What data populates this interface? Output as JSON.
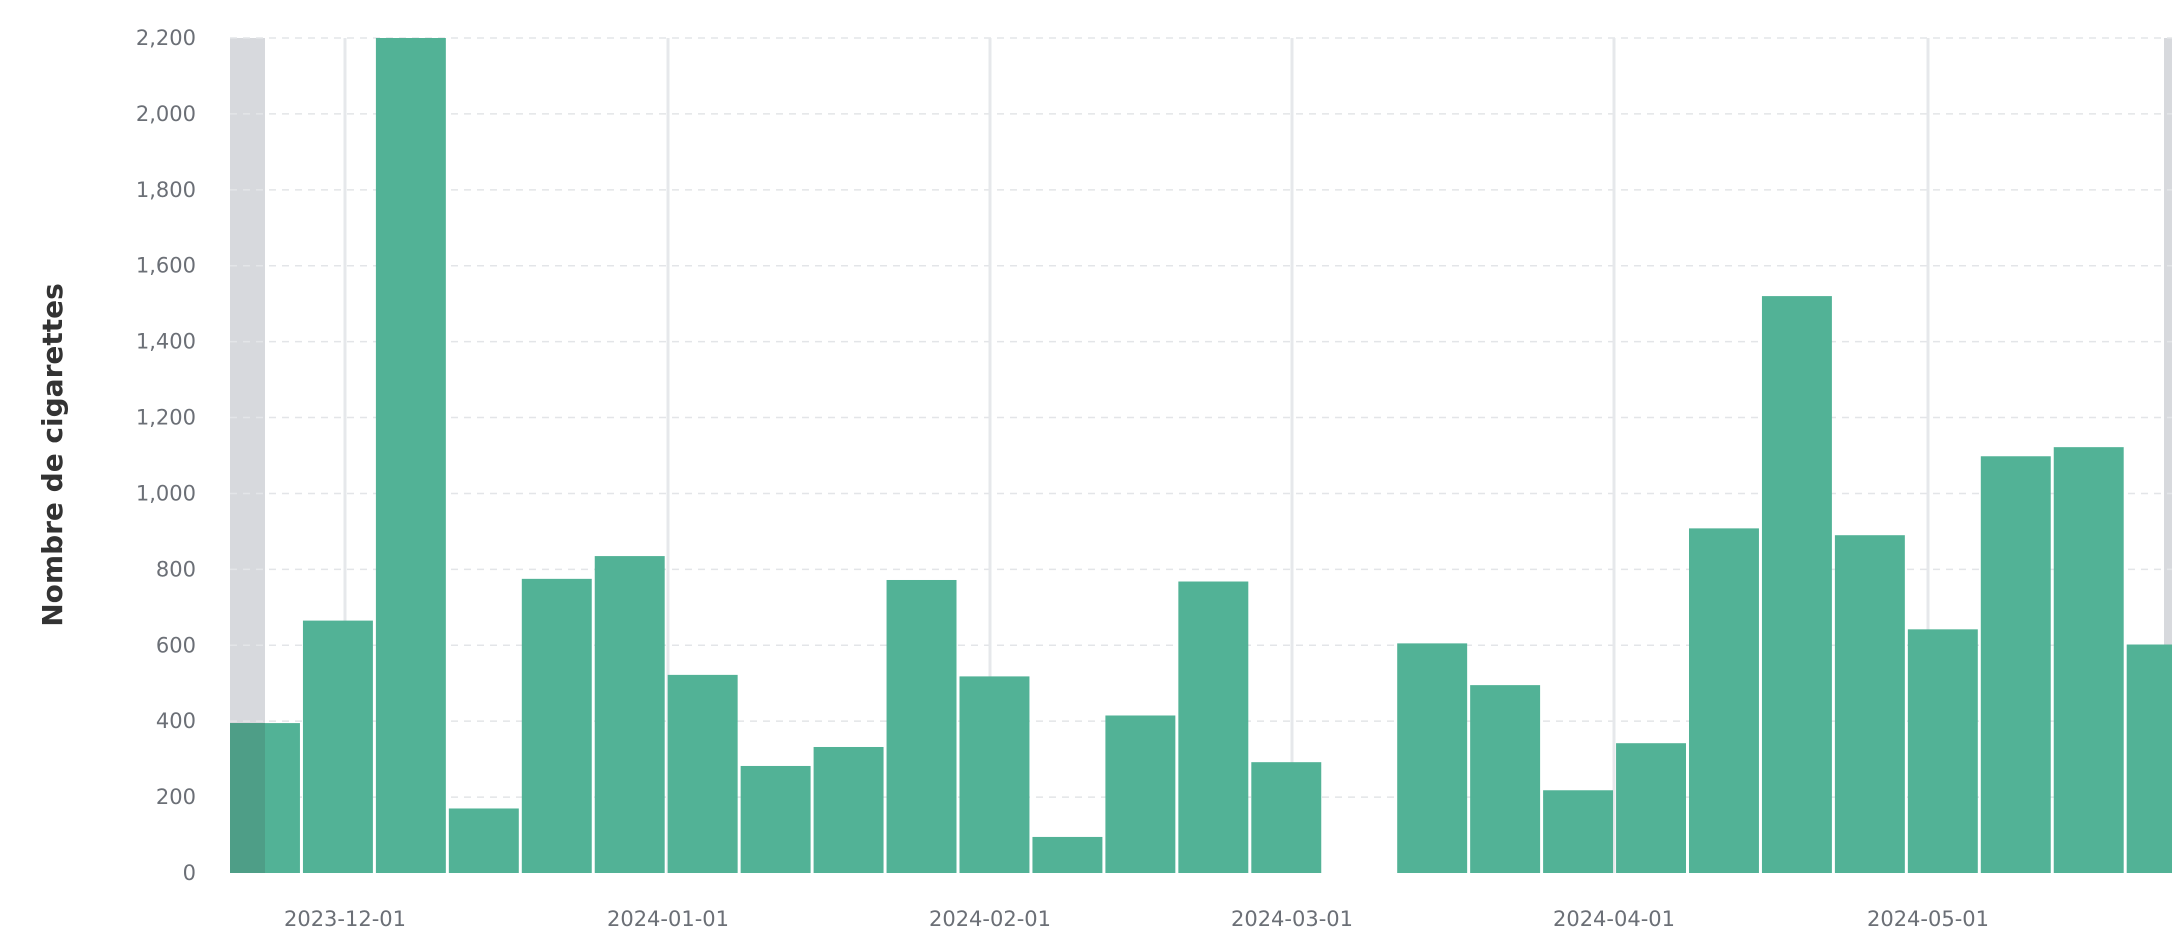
{
  "chart_data": {
    "type": "bar",
    "title": "",
    "xlabel": "",
    "ylabel": "Nombre de cigarettes",
    "ylim": [
      0,
      2200
    ],
    "y_ticks": [
      0,
      200,
      400,
      600,
      800,
      1000,
      1200,
      1400,
      1600,
      1800,
      2000,
      2200
    ],
    "y_tick_labels": [
      "0",
      "200",
      "400",
      "600",
      "800",
      "1,000",
      "1,200",
      "1,400",
      "1,600",
      "1,800",
      "2,000",
      "2,200"
    ],
    "x_tick_labels": [
      "2023-12-01",
      "2024-01-01",
      "2024-02-01",
      "2024-03-01",
      "2024-04-01",
      "2024-05-01"
    ],
    "grid": true,
    "legend": false,
    "colors": {
      "bar": "#52b296",
      "bar_shaded": "#4e9e87",
      "shade": "#c9ccd1",
      "gridline": "#e3e5e8",
      "month_line": "#e6e8eb",
      "tick_label": "#6b6f76",
      "axis_title": "#333333"
    },
    "values": [
      395,
      665,
      2200,
      170,
      775,
      835,
      522,
      282,
      332,
      772,
      518,
      95,
      415,
      768,
      292,
      0,
      605,
      495,
      218,
      342,
      908,
      1520,
      890,
      642,
      1098,
      1122,
      602
    ]
  }
}
